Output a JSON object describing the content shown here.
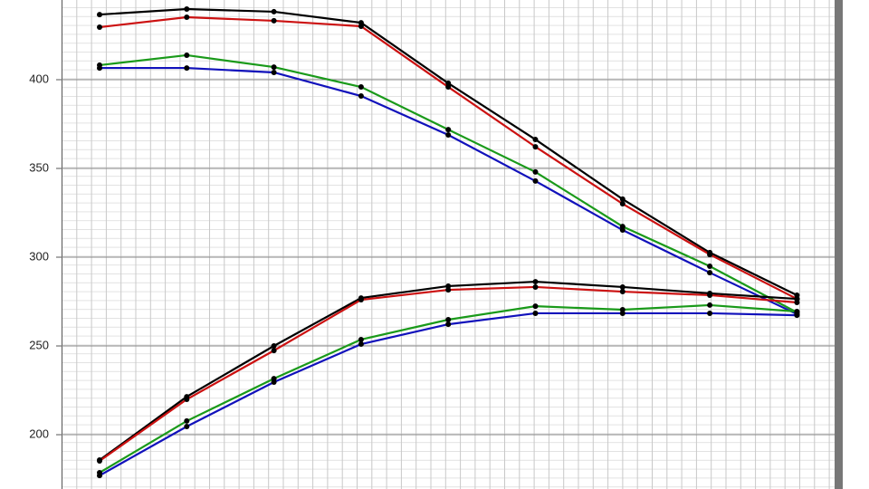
{
  "chart_data": {
    "type": "line",
    "categories": [
      null,
      null,
      null,
      null,
      null,
      null,
      null,
      null,
      null
    ],
    "series": [
      {
        "color": "#000000",
        "values": [
          436.7,
          439.8,
          438.3,
          432.1,
          398.0,
          366.3,
          332.7,
          302.6,
          278.6
        ]
      },
      {
        "color": "#cc1111",
        "values": [
          429.6,
          435.2,
          433.2,
          430.1,
          395.9,
          362.2,
          330.1,
          301.5,
          276.5
        ]
      },
      {
        "color": "#1a9a1a",
        "values": [
          408.2,
          413.8,
          407.1,
          395.9,
          371.9,
          348.0,
          317.3,
          294.9,
          268.9
        ]
      },
      {
        "color": "#1111bb",
        "values": [
          406.6,
          406.6,
          404.1,
          390.8,
          368.9,
          342.9,
          315.3,
          291.3,
          267.9
        ]
      },
      {
        "color": "#000000",
        "values": [
          185.7,
          221.4,
          250.0,
          277.0,
          283.7,
          286.2,
          283.2,
          279.6,
          276.5
        ]
      },
      {
        "color": "#cc1111",
        "values": [
          185.2,
          219.9,
          247.4,
          276.0,
          281.6,
          283.2,
          280.6,
          278.6,
          274.5
        ]
      },
      {
        "color": "#1a9a1a",
        "values": [
          178.6,
          207.7,
          231.6,
          253.6,
          264.8,
          272.4,
          270.4,
          273.0,
          269.4
        ]
      },
      {
        "color": "#1111bb",
        "values": [
          177.0,
          204.6,
          229.6,
          251.0,
          262.2,
          268.4,
          268.4,
          268.4,
          267.3
        ]
      }
    ],
    "marker_color": "#000000",
    "ylim": [
      169.4,
      444.9
    ],
    "yticks": [
      200,
      250,
      300,
      350,
      400
    ],
    "grid": true
  }
}
